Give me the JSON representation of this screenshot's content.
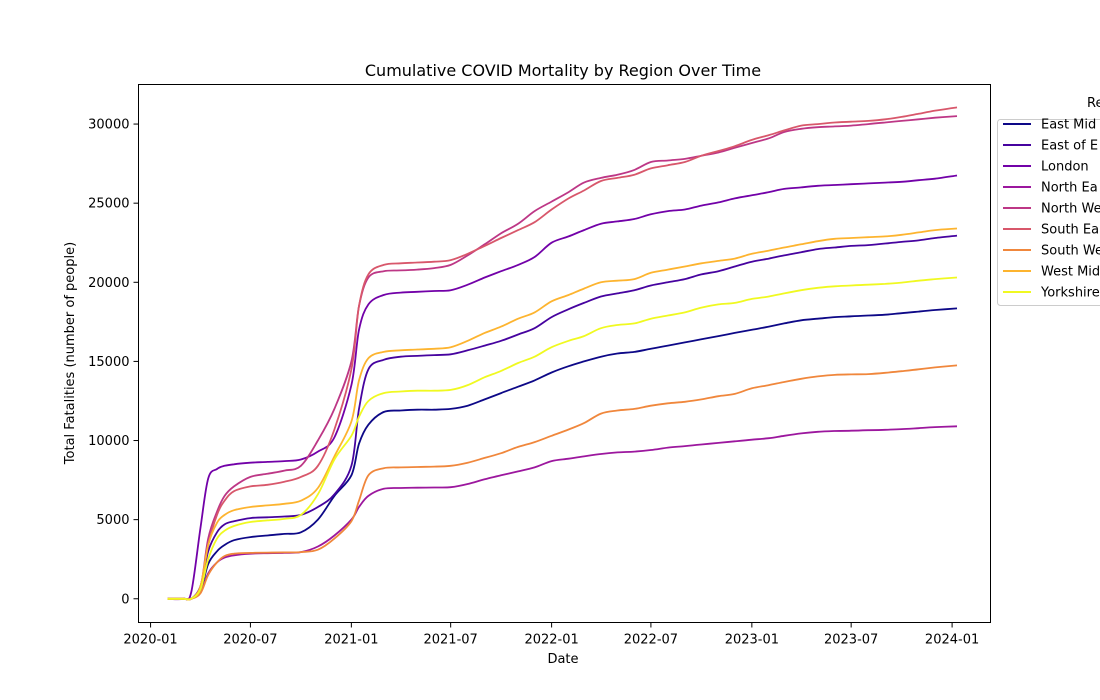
{
  "chart_data": {
    "type": "line",
    "title": "Cumulative COVID Mortality by Region Over Time",
    "xlabel": "Date",
    "ylabel": "Total Fatalities (number of people)",
    "x_ticks": [
      "2020-01",
      "2020-07",
      "2021-01",
      "2021-07",
      "2022-01",
      "2022-07",
      "2023-01",
      "2023-07",
      "2024-01"
    ],
    "y_ticks": [
      0,
      5000,
      10000,
      15000,
      20000,
      25000,
      30000
    ],
    "xlim": [
      "2019-12-10",
      "2024-03-11"
    ],
    "ylim": [
      -1500,
      32500
    ],
    "grid": false,
    "legend": {
      "title": "Re",
      "placement": "right-outside",
      "entries": [
        "East Mid",
        "East of E",
        "London",
        "North Ea",
        "North We",
        "South Ea",
        "South We",
        "West Mid",
        "Yorkshire"
      ]
    },
    "x": [
      "2020-02-01",
      "2020-03-01",
      "2020-03-15",
      "2020-04-01",
      "2020-04-15",
      "2020-05-01",
      "2020-05-15",
      "2020-06-01",
      "2020-07-01",
      "2020-08-01",
      "2020-09-01",
      "2020-10-01",
      "2020-11-01",
      "2020-12-01",
      "2021-01-01",
      "2021-01-15",
      "2021-02-01",
      "2021-03-01",
      "2021-04-01",
      "2021-05-01",
      "2021-06-01",
      "2021-07-01",
      "2021-08-01",
      "2021-09-01",
      "2021-10-01",
      "2021-11-01",
      "2021-12-01",
      "2022-01-01",
      "2022-02-01",
      "2022-03-01",
      "2022-04-01",
      "2022-05-01",
      "2022-06-01",
      "2022-07-01",
      "2022-08-01",
      "2022-09-01",
      "2022-10-01",
      "2022-11-01",
      "2022-12-01",
      "2023-01-01",
      "2023-02-01",
      "2023-03-01",
      "2023-04-01",
      "2023-05-01",
      "2023-06-01",
      "2023-07-01",
      "2023-08-01",
      "2023-09-01",
      "2023-10-01",
      "2023-11-01",
      "2023-12-01",
      "2024-01-10"
    ],
    "series": [
      {
        "name": "East Mid",
        "color": "#0d0887",
        "values": [
          0,
          0,
          0,
          500,
          2200,
          3000,
          3400,
          3700,
          3900,
          4000,
          4100,
          4200,
          5000,
          6500,
          7800,
          9800,
          11000,
          11800,
          11900,
          11950,
          11950,
          12000,
          12200,
          12600,
          13000,
          13400,
          13800,
          14300,
          14700,
          15000,
          15300,
          15500,
          15600,
          15800,
          16000,
          16200,
          16400,
          16600,
          16800,
          17000,
          17200,
          17400,
          17600,
          17700,
          17800,
          17850,
          17900,
          17950,
          18050,
          18150,
          18250,
          18350
        ]
      },
      {
        "name": "East of E",
        "color": "#46039f",
        "values": [
          0,
          0,
          0,
          800,
          3000,
          4200,
          4700,
          4900,
          5100,
          5150,
          5200,
          5300,
          5800,
          6600,
          8400,
          12000,
          14500,
          15100,
          15300,
          15350,
          15400,
          15450,
          15700,
          16000,
          16300,
          16700,
          17100,
          17800,
          18300,
          18700,
          19100,
          19300,
          19500,
          19800,
          20000,
          20200,
          20500,
          20700,
          21000,
          21300,
          21500,
          21700,
          21900,
          22100,
          22200,
          22300,
          22350,
          22450,
          22550,
          22650,
          22800,
          22950
        ]
      },
      {
        "name": "London",
        "color": "#7201a8",
        "values": [
          0,
          0,
          400,
          4500,
          7600,
          8200,
          8400,
          8500,
          8600,
          8650,
          8700,
          8800,
          9300,
          10200,
          13500,
          17000,
          18600,
          19200,
          19350,
          19400,
          19450,
          19500,
          19850,
          20300,
          20700,
          21100,
          21600,
          22500,
          22900,
          23300,
          23700,
          23850,
          24000,
          24300,
          24500,
          24600,
          24850,
          25050,
          25300,
          25500,
          25700,
          25900,
          26000,
          26100,
          26150,
          26200,
          26250,
          26300,
          26350,
          26450,
          26550,
          26750
        ]
      },
      {
        "name": "North Ea",
        "color": "#9c179e",
        "values": [
          0,
          0,
          0,
          400,
          1600,
          2300,
          2600,
          2750,
          2850,
          2880,
          2900,
          2950,
          3300,
          4000,
          5000,
          5800,
          6500,
          6950,
          7000,
          7020,
          7030,
          7050,
          7250,
          7550,
          7800,
          8050,
          8300,
          8700,
          8850,
          9000,
          9150,
          9250,
          9300,
          9400,
          9550,
          9650,
          9750,
          9850,
          9950,
          10050,
          10150,
          10300,
          10450,
          10550,
          10600,
          10620,
          10650,
          10680,
          10720,
          10780,
          10850,
          10900
        ]
      },
      {
        "name": "North We",
        "color": "#bd3786",
        "values": [
          0,
          0,
          0,
          700,
          3800,
          5500,
          6500,
          7100,
          7700,
          7900,
          8100,
          8400,
          10000,
          12000,
          15000,
          18500,
          20300,
          20700,
          20750,
          20800,
          20900,
          21100,
          21700,
          22400,
          23100,
          23700,
          24500,
          25100,
          25700,
          26300,
          26600,
          26800,
          27100,
          27600,
          27700,
          27800,
          28000,
          28200,
          28500,
          28800,
          29100,
          29500,
          29700,
          29800,
          29850,
          29900,
          30000,
          30100,
          30200,
          30300,
          30400,
          30500
        ]
      },
      {
        "name": "South Ea",
        "color": "#d8576b",
        "values": [
          0,
          0,
          0,
          700,
          3400,
          5300,
          6200,
          6800,
          7100,
          7200,
          7400,
          7700,
          8400,
          10700,
          14500,
          18500,
          20500,
          21100,
          21200,
          21250,
          21300,
          21400,
          21800,
          22300,
          22800,
          23300,
          23800,
          24600,
          25300,
          25800,
          26400,
          26600,
          26800,
          27200,
          27400,
          27600,
          28000,
          28300,
          28600,
          29000,
          29300,
          29600,
          29900,
          30000,
          30100,
          30150,
          30200,
          30300,
          30450,
          30650,
          30850,
          31050
        ]
      },
      {
        "name": "South We",
        "color": "#f0873c",
        "values": [
          0,
          0,
          0,
          350,
          1500,
          2300,
          2700,
          2850,
          2900,
          2920,
          2930,
          2950,
          3100,
          3800,
          4900,
          6200,
          7800,
          8250,
          8300,
          8330,
          8350,
          8400,
          8600,
          8900,
          9200,
          9600,
          9900,
          10300,
          10700,
          11100,
          11700,
          11900,
          12000,
          12200,
          12350,
          12450,
          12600,
          12800,
          12950,
          13300,
          13500,
          13700,
          13900,
          14050,
          14150,
          14180,
          14200,
          14280,
          14380,
          14500,
          14620,
          14750
        ]
      },
      {
        "name": "West Mid",
        "color": "#fdb42f",
        "values": [
          0,
          0,
          0,
          800,
          3400,
          4800,
          5300,
          5600,
          5800,
          5900,
          6000,
          6200,
          7000,
          9000,
          11200,
          13800,
          15200,
          15600,
          15700,
          15750,
          15800,
          15900,
          16300,
          16800,
          17200,
          17700,
          18100,
          18800,
          19200,
          19600,
          20000,
          20100,
          20200,
          20600,
          20800,
          21000,
          21200,
          21350,
          21500,
          21800,
          22000,
          22200,
          22400,
          22600,
          22750,
          22800,
          22850,
          22900,
          23000,
          23150,
          23300,
          23400
        ]
      },
      {
        "name": "Yorkshire",
        "color": "#f0f921",
        "values": [
          0,
          0,
          0,
          600,
          2500,
          3800,
          4300,
          4600,
          4850,
          4950,
          5050,
          5300,
          6600,
          8800,
          10300,
          11500,
          12500,
          13000,
          13100,
          13150,
          13150,
          13200,
          13500,
          14000,
          14400,
          14900,
          15300,
          15900,
          16300,
          16600,
          17100,
          17300,
          17400,
          17700,
          17900,
          18100,
          18400,
          18600,
          18700,
          18950,
          19100,
          19300,
          19500,
          19650,
          19750,
          19800,
          19850,
          19900,
          19980,
          20100,
          20200,
          20300
        ]
      }
    ]
  }
}
